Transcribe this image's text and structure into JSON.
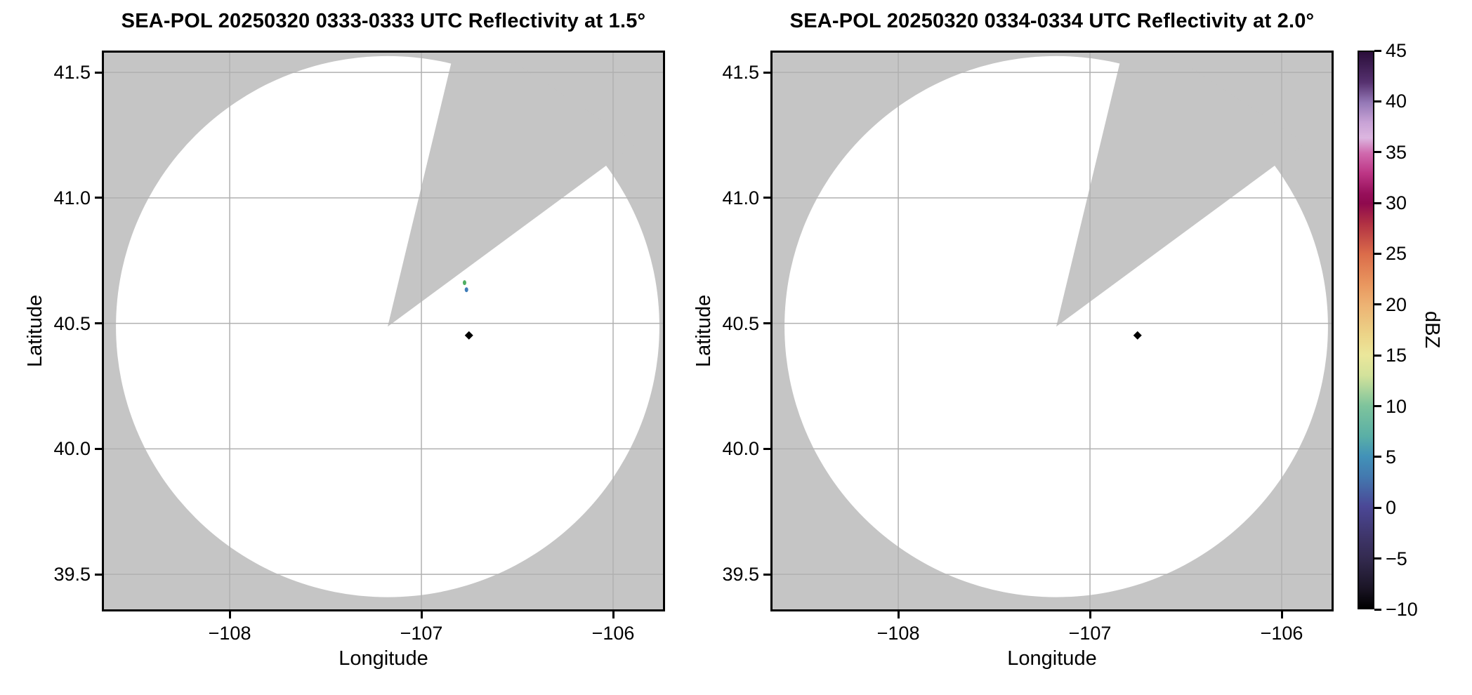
{
  "figure": {
    "background": "#ffffff",
    "panel_bg": "#c5c5c5",
    "coverage_fill": "#ffffff",
    "grid_color": "#b0b0b0",
    "spine_color": "#000000",
    "text_color": "#000000"
  },
  "chart_data": {
    "type": "heatmap",
    "description": "Two PPI radar reflectivity scans on lat/lon axes; white disk = scanned area, gray = no data, wedge sector missing; shared vertical dBZ colorbar.",
    "grid": "on",
    "subplots": [
      {
        "title": "SEA-POL 20250320 0333-0333 UTC Reflectivity at 1.5°",
        "xlabel": "Longitude",
        "ylabel": "Latitude",
        "xlim": [
          -108.667,
          -105.729
        ],
        "ylim": [
          39.352,
          41.587
        ],
        "x_ticks": [
          {
            "value": -108,
            "label": "−108"
          },
          {
            "value": -107,
            "label": "−107"
          },
          {
            "value": -106,
            "label": "−106"
          }
        ],
        "y_ticks": [
          {
            "value": 41.5,
            "label": "41.5"
          },
          {
            "value": 41.0,
            "label": "41.0"
          },
          {
            "value": 40.5,
            "label": "40.5"
          },
          {
            "value": 40.0,
            "label": "40.0"
          },
          {
            "value": 39.5,
            "label": "39.5"
          }
        ],
        "radar": {
          "center_lon": -107.176,
          "center_lat": 40.487,
          "range_deg_lat": 1.078,
          "missing_sector_azimuth_deg": [
            13.5,
            53.5
          ]
        },
        "echoes": [
          {
            "lon": -106.775,
            "lat": 40.662,
            "dbz": 10,
            "color": "#4FAE62",
            "shape": "dot"
          },
          {
            "lon": -106.765,
            "lat": 40.634,
            "dbz": 5,
            "color": "#3E7CB8",
            "shape": "dot"
          },
          {
            "lon": -106.752,
            "lat": 40.452,
            "dbz": -10,
            "color": "#000000",
            "shape": "diamond"
          }
        ]
      },
      {
        "title": "SEA-POL 20250320 0334-0334 UTC Reflectivity at 2.0°",
        "xlabel": "Longitude",
        "ylabel": "Latitude",
        "xlim": [
          -108.667,
          -105.729
        ],
        "ylim": [
          39.352,
          41.587
        ],
        "x_ticks": [
          {
            "value": -108,
            "label": "−108"
          },
          {
            "value": -107,
            "label": "−107"
          },
          {
            "value": -106,
            "label": "−106"
          }
        ],
        "y_ticks": [
          {
            "value": 41.5,
            "label": "41.5"
          },
          {
            "value": 41.0,
            "label": "41.0"
          },
          {
            "value": 40.5,
            "label": "40.5"
          },
          {
            "value": 40.0,
            "label": "40.0"
          },
          {
            "value": 39.5,
            "label": "39.5"
          }
        ],
        "radar": {
          "center_lon": -107.176,
          "center_lat": 40.487,
          "range_deg_lat": 1.078,
          "missing_sector_azimuth_deg": [
            13.5,
            53.5
          ]
        },
        "echoes": [
          {
            "lon": -106.752,
            "lat": 40.452,
            "dbz": -10,
            "color": "#000000",
            "shape": "diamond"
          }
        ]
      }
    ],
    "colorbar": {
      "label": "dBZ",
      "min": -10,
      "max": 45,
      "ticks": [
        {
          "value": 45,
          "label": "45"
        },
        {
          "value": 40,
          "label": "40"
        },
        {
          "value": 35,
          "label": "35"
        },
        {
          "value": 30,
          "label": "30"
        },
        {
          "value": 25,
          "label": "25"
        },
        {
          "value": 20,
          "label": "20"
        },
        {
          "value": 15,
          "label": "15"
        },
        {
          "value": 10,
          "label": "10"
        },
        {
          "value": 5,
          "label": "5"
        },
        {
          "value": 0,
          "label": "0"
        },
        {
          "value": -5,
          "label": "−5"
        },
        {
          "value": -10,
          "label": "−10"
        }
      ],
      "gradient": [
        {
          "v": 45,
          "c": "#2A0E3A"
        },
        {
          "v": 42,
          "c": "#56316F"
        },
        {
          "v": 40,
          "c": "#9478B6"
        },
        {
          "v": 38,
          "c": "#C9A3D6"
        },
        {
          "v": 36.5,
          "c": "#DCB6E0"
        },
        {
          "v": 35,
          "c": "#D06AAE"
        },
        {
          "v": 33,
          "c": "#BD3685"
        },
        {
          "v": 31,
          "c": "#97105B"
        },
        {
          "v": 30,
          "c": "#8F094E"
        },
        {
          "v": 28,
          "c": "#B13143"
        },
        {
          "v": 25,
          "c": "#DB6C4A"
        },
        {
          "v": 22,
          "c": "#E9975F"
        },
        {
          "v": 20,
          "c": "#EDB273"
        },
        {
          "v": 17,
          "c": "#ECD488"
        },
        {
          "v": 15,
          "c": "#EBE79B"
        },
        {
          "v": 13,
          "c": "#D3E29B"
        },
        {
          "v": 10,
          "c": "#7EC49C"
        },
        {
          "v": 7,
          "c": "#5AAFA6"
        },
        {
          "v": 5,
          "c": "#4292B8"
        },
        {
          "v": 3,
          "c": "#4379AF"
        },
        {
          "v": 0,
          "c": "#4B4796"
        },
        {
          "v": -3,
          "c": "#3E3569"
        },
        {
          "v": -5,
          "c": "#342B51"
        },
        {
          "v": -8,
          "c": "#1B1526"
        },
        {
          "v": -10,
          "c": "#000000"
        }
      ]
    }
  }
}
